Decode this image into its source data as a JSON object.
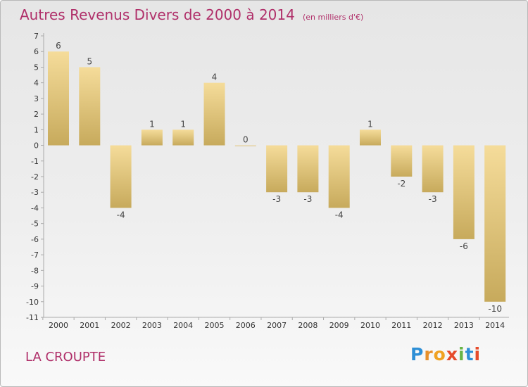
{
  "header": {
    "title": "Autres Revenus Divers de 2000 à 2014",
    "unit": "(en milliers d'€)"
  },
  "footer": {
    "commune": "LA CROUPTE",
    "logo_text": "Proxiti"
  },
  "colors": {
    "title": "#b0306a",
    "bar_light": "#f5dc9a",
    "bar_dark": "#c7aa5c",
    "logo": [
      "#2e8fd6",
      "#e8902a",
      "#f0a222",
      "#e64b2b",
      "#67b445",
      "#2e8fd6",
      "#e64b2b"
    ]
  },
  "chart_data": {
    "type": "bar",
    "categories": [
      "2000",
      "2001",
      "2002",
      "2003",
      "2004",
      "2005",
      "2006",
      "2007",
      "2008",
      "2009",
      "2010",
      "2011",
      "2012",
      "2013",
      "2014"
    ],
    "values": [
      6,
      5,
      -4,
      1,
      1,
      4,
      0,
      -3,
      -3,
      -4,
      1,
      -2,
      -3,
      -6,
      -10
    ],
    "data_labels": [
      "6",
      "5",
      "-4",
      "1",
      "1",
      "4",
      "0",
      "-3",
      "-3",
      "-4",
      "1",
      "-2",
      "-3",
      "-6",
      "-10"
    ],
    "yticks": [
      7,
      6,
      5,
      4,
      3,
      2,
      1,
      0,
      -1,
      -2,
      -3,
      -4,
      -5,
      -6,
      -7,
      -8,
      -9,
      -10,
      -11
    ],
    "ylim": [
      -11,
      7
    ],
    "grid": false,
    "legend": "none"
  }
}
